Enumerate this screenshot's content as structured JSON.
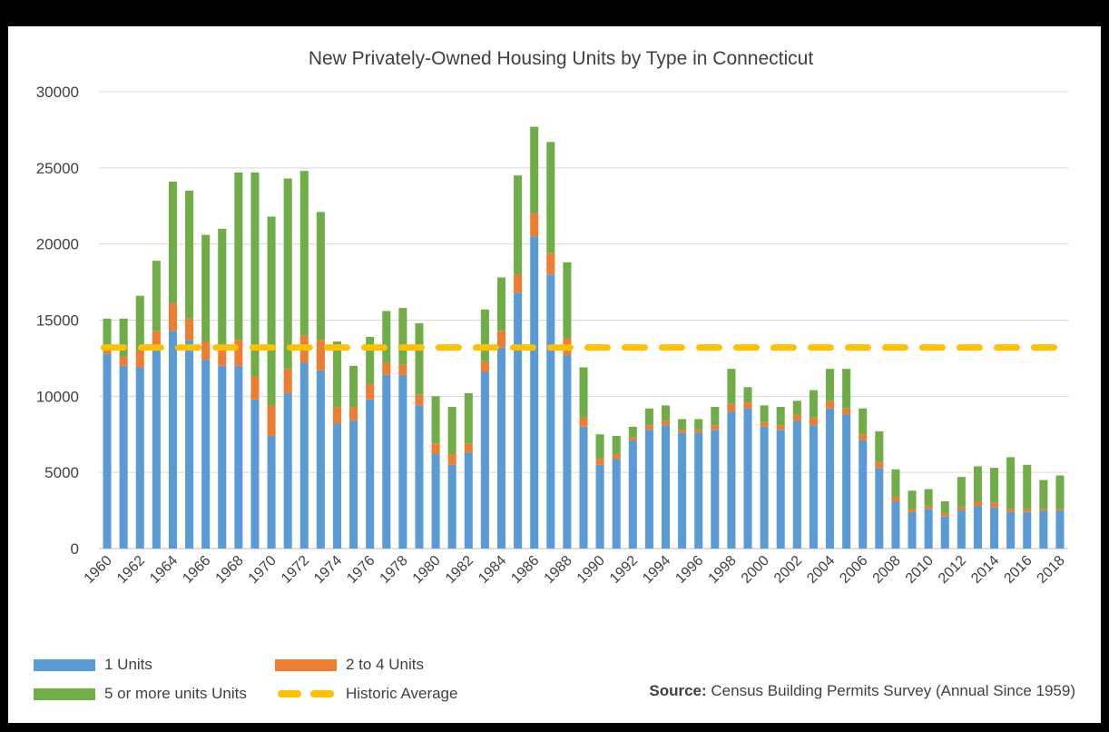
{
  "chart_data": {
    "type": "bar",
    "stacked": true,
    "title": "New Privately-Owned Housing Units by Type in Connecticut",
    "ylim": [
      0,
      30000
    ],
    "yticks": [
      "0",
      "5000",
      "10000",
      "15000",
      "20000",
      "25000",
      "30000"
    ],
    "ytick_values": [
      0,
      5000,
      10000,
      15000,
      20000,
      25000,
      30000
    ],
    "categories": [
      1960,
      1961,
      1962,
      1963,
      1964,
      1965,
      1966,
      1967,
      1968,
      1969,
      1970,
      1971,
      1972,
      1973,
      1974,
      1975,
      1976,
      1977,
      1978,
      1979,
      1980,
      1981,
      1982,
      1983,
      1984,
      1985,
      1986,
      1987,
      1988,
      1989,
      1990,
      1991,
      1992,
      1993,
      1994,
      1995,
      1996,
      1997,
      1998,
      1999,
      2000,
      2001,
      2002,
      2003,
      2004,
      2005,
      2006,
      2007,
      2008,
      2009,
      2010,
      2011,
      2012,
      2013,
      2014,
      2015,
      2016,
      2017,
      2018
    ],
    "xtick_labels": [
      "1960",
      "1962",
      "1964",
      "1966",
      "1968",
      "1970",
      "1972",
      "1974",
      "1976",
      "1978",
      "1980",
      "1982",
      "1984",
      "1986",
      "1988",
      "1990",
      "1992",
      "1994",
      "1996",
      "1998",
      "2000",
      "2002",
      "2004",
      "2006",
      "2008",
      "2010",
      "2012",
      "2014",
      "2016",
      "2018"
    ],
    "series": [
      {
        "name": "1 Units",
        "color": "#5b9bd5",
        "values": [
          12800,
          12000,
          11900,
          13000,
          14300,
          13700,
          12400,
          12000,
          12000,
          9800,
          7400,
          10200,
          12200,
          11700,
          8200,
          8400,
          9800,
          11400,
          11400,
          9400,
          6200,
          5500,
          6300,
          11600,
          13200,
          16800,
          20500,
          18000,
          12700,
          8000,
          5500,
          5900,
          7100,
          7800,
          8100,
          7600,
          7600,
          7800,
          9000,
          9200,
          8000,
          7800,
          8400,
          8100,
          9200,
          8800,
          7100,
          5300,
          3100,
          2400,
          2600,
          2100,
          2500,
          2800,
          2700,
          2400,
          2400,
          2500,
          2500
        ]
      },
      {
        "name": "2 to 4 Units",
        "color": "#ed7d31",
        "values": [
          400,
          600,
          1100,
          1300,
          1800,
          1400,
          1200,
          1200,
          1700,
          1500,
          2000,
          1600,
          1800,
          2000,
          1100,
          900,
          1000,
          800,
          700,
          700,
          700,
          700,
          600,
          700,
          1100,
          1200,
          1500,
          1400,
          1100,
          600,
          400,
          300,
          200,
          300,
          300,
          200,
          200,
          300,
          500,
          400,
          300,
          300,
          400,
          500,
          500,
          400,
          400,
          400,
          300,
          200,
          200,
          200,
          200,
          300,
          300,
          200,
          200,
          100,
          100
        ]
      },
      {
        "name": "5 or more units Units",
        "color": "#70ad47",
        "values": [
          1900,
          2500,
          3600,
          4600,
          8000,
          8400,
          7000,
          7800,
          11000,
          13400,
          12400,
          12500,
          10800,
          8400,
          4300,
          2700,
          3100,
          3400,
          3700,
          4700,
          3100,
          3100,
          3300,
          3400,
          3500,
          6500,
          5700,
          7300,
          5000,
          3300,
          1600,
          1200,
          700,
          1100,
          1000,
          700,
          700,
          1200,
          2300,
          1000,
          1100,
          1200,
          900,
          1800,
          2100,
          2600,
          1700,
          2000,
          1800,
          1200,
          1100,
          800,
          2000,
          2300,
          2300,
          3400,
          2900,
          1900,
          2200
        ]
      }
    ],
    "historic_average": {
      "name": "Historic Average",
      "value": 13200,
      "color": "#ffc000"
    }
  },
  "source": {
    "label": "Source:",
    "text": " Census Building Permits Survey (Annual Since 1959)"
  }
}
